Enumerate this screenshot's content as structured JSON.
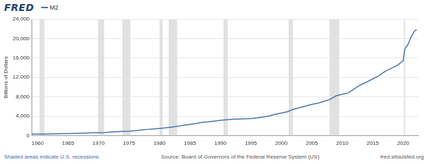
{
  "chart_data": {
    "type": "line",
    "logo": "FRED",
    "y_label": "Billions of Dollars",
    "note": "Shaded areas indicate U.S. recessions.",
    "source": "Source: Board of Governors of the Federal Reserve System (US)",
    "website": "fred.stlouisfed.org",
    "legend": "top-left",
    "grid": true,
    "x": [
      1959,
      1960,
      1961,
      1962,
      1963,
      1964,
      1965,
      1966,
      1967,
      1968,
      1969,
      1970,
      1971,
      1972,
      1973,
      1974,
      1975,
      1976,
      1977,
      1978,
      1979,
      1980,
      1981,
      1982,
      1983,
      1984,
      1985,
      1986,
      1987,
      1988,
      1989,
      1990,
      1991,
      1992,
      1993,
      1994,
      1995,
      1996,
      1997,
      1998,
      1999,
      2000,
      2001,
      2002,
      2003,
      2004,
      2005,
      2006,
      2007,
      2008,
      2009,
      2010,
      2011,
      2012,
      2013,
      2014,
      2015,
      2016,
      2017,
      2018,
      2019,
      2020,
      2020.25,
      2020.5,
      2020.75,
      2021,
      2021.25,
      2021.5,
      2021.75,
      2022,
      2022.25
    ],
    "series": [
      {
        "name": "M2",
        "color": "#4572a7",
        "values": [
          286,
          300,
          312,
          335,
          362,
          393,
          424,
          459,
          481,
          527,
          569,
          589,
          628,
          712,
          805,
          861,
          908,
          1016,
          1152,
          1271,
          1366,
          1474,
          1599,
          1755,
          1906,
          2123,
          2306,
          2492,
          2728,
          2826,
          2988,
          3152,
          3272,
          3372,
          3414,
          3482,
          3498,
          3640,
          3818,
          4032,
          4379,
          4638,
          4925,
          5436,
          5773,
          6067,
          6419,
          6681,
          7071,
          7471,
          8192,
          8497,
          8801,
          9659,
          10446,
          11036,
          11673,
          12335,
          13208,
          13844,
          14444,
          15400,
          17700,
          18300,
          18700,
          19400,
          20200,
          20700,
          21300,
          21700,
          21750
        ]
      }
    ],
    "recessions": [
      [
        1960.3,
        1961.1
      ],
      [
        1969.9,
        1970.9
      ],
      [
        1973.9,
        1975.2
      ],
      [
        1980.0,
        1980.5
      ],
      [
        1981.5,
        1982.9
      ],
      [
        1990.5,
        1991.2
      ],
      [
        2001.2,
        2001.9
      ],
      [
        2007.9,
        2009.5
      ],
      [
        2020.1,
        2020.3
      ]
    ],
    "xlim": [
      1959,
      2022.5
    ],
    "xticks": [
      1960,
      1965,
      1970,
      1975,
      1980,
      1985,
      1990,
      1995,
      2000,
      2005,
      2010,
      2015,
      2020
    ],
    "ylim": [
      0,
      24000
    ],
    "yticks": [
      0,
      {
        "value": 4000,
        "label": "4,000"
      },
      {
        "value": 8000,
        "label": "8,000"
      },
      {
        "value": 12000,
        "label": "12,000"
      },
      {
        "value": 16000,
        "label": "16,000"
      },
      {
        "value": 20000,
        "label": "20,000"
      },
      {
        "value": 24000,
        "label": "24,000"
      }
    ]
  }
}
